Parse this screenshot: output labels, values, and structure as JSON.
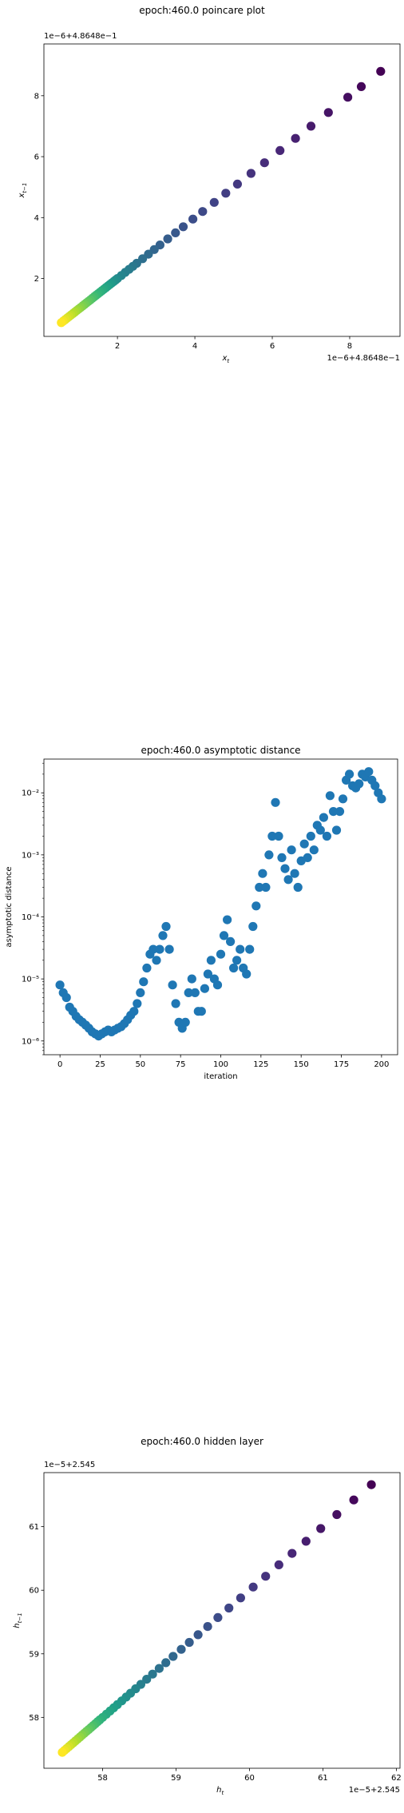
{
  "chart_data": [
    {
      "type": "scatter",
      "title": "epoch:460.0 poincare plot",
      "xlabel": "x_t",
      "ylabel": "x_{t-1}",
      "x_offset_text": "1e−6+4.8648e−1",
      "y_offset_text": "1e−6+4.8648e−1",
      "x_ticks": [
        "2",
        "4",
        "6",
        "8"
      ],
      "y_ticks": [
        "2",
        "4",
        "6",
        "8"
      ],
      "xlim": [
        0.1,
        9.3
      ],
      "ylim": [
        0.1,
        9.7
      ],
      "colormap": "viridis (dark purple = early, yellow = late)",
      "points_x": [
        0.55,
        0.6,
        0.65,
        0.7,
        0.75,
        0.8,
        0.85,
        0.9,
        0.95,
        1.0,
        1.05,
        1.1,
        1.15,
        1.2,
        1.25,
        1.3,
        1.35,
        1.4,
        1.45,
        1.5,
        1.55,
        1.6,
        1.65,
        1.7,
        1.75,
        1.8,
        1.85,
        1.9,
        1.95,
        2.0,
        2.1,
        2.2,
        2.3,
        2.4,
        2.5,
        2.65,
        2.8,
        2.95,
        3.1,
        3.3,
        3.5,
        3.7,
        3.95,
        4.2,
        4.5,
        4.8,
        5.1,
        5.45,
        5.8,
        6.2,
        6.6,
        7.0,
        7.45,
        7.95,
        8.3,
        8.8
      ],
      "points_y": [
        0.55,
        0.6,
        0.65,
        0.7,
        0.75,
        0.8,
        0.85,
        0.9,
        0.95,
        1.0,
        1.05,
        1.1,
        1.15,
        1.2,
        1.25,
        1.3,
        1.35,
        1.4,
        1.45,
        1.5,
        1.55,
        1.6,
        1.65,
        1.7,
        1.75,
        1.8,
        1.85,
        1.9,
        1.95,
        2.0,
        2.1,
        2.2,
        2.3,
        2.4,
        2.5,
        2.65,
        2.8,
        2.95,
        3.1,
        3.3,
        3.5,
        3.7,
        3.95,
        4.2,
        4.5,
        4.8,
        5.1,
        5.45,
        5.8,
        6.2,
        6.6,
        7.0,
        7.45,
        7.95,
        8.3,
        8.8
      ]
    },
    {
      "type": "scatter",
      "title": "epoch:460.0 asymptotic distance",
      "xlabel": "iteration",
      "ylabel": "asymptotic distance",
      "y_scale": "log",
      "x_ticks": [
        0,
        25,
        50,
        75,
        100,
        125,
        150,
        175,
        200
      ],
      "y_ticks": [
        "10⁻⁶",
        "10⁻⁵",
        "10⁻⁴",
        "10⁻³",
        "10⁻²"
      ],
      "xlim": [
        -10,
        210
      ],
      "ylim": [
        6e-07,
        0.035
      ],
      "color": "#1f77b4",
      "points_x": [
        0,
        2,
        4,
        6,
        8,
        10,
        12,
        14,
        16,
        18,
        20,
        22,
        24,
        26,
        28,
        30,
        32,
        34,
        36,
        38,
        40,
        42,
        44,
        46,
        48,
        50,
        52,
        54,
        56,
        58,
        60,
        62,
        64,
        66,
        68,
        70,
        72,
        74,
        76,
        78,
        80,
        82,
        84,
        86,
        88,
        90,
        92,
        94,
        96,
        98,
        100,
        102,
        104,
        106,
        108,
        110,
        112,
        114,
        116,
        118,
        120,
        122,
        124,
        126,
        128,
        130,
        132,
        134,
        136,
        138,
        140,
        142,
        144,
        146,
        148,
        150,
        152,
        154,
        156,
        158,
        160,
        162,
        164,
        166,
        168,
        170,
        172,
        174,
        176,
        178,
        180,
        182,
        184,
        186,
        188,
        190,
        192,
        194,
        196,
        198,
        200
      ],
      "points_y": [
        8e-06,
        6e-06,
        5e-06,
        3.5e-06,
        3e-06,
        2.5e-06,
        2.2e-06,
        2e-06,
        1.8e-06,
        1.6e-06,
        1.4e-06,
        1.3e-06,
        1.2e-06,
        1.3e-06,
        1.4e-06,
        1.5e-06,
        1.4e-06,
        1.5e-06,
        1.6e-06,
        1.7e-06,
        1.9e-06,
        2.2e-06,
        2.6e-06,
        3e-06,
        4e-06,
        6e-06,
        9e-06,
        1.5e-05,
        2.5e-05,
        3e-05,
        2e-05,
        3e-05,
        5e-05,
        7e-05,
        3e-05,
        8e-06,
        4e-06,
        2e-06,
        1.6e-06,
        2e-06,
        6e-06,
        1e-05,
        6e-06,
        3e-06,
        3e-06,
        7e-06,
        1.2e-05,
        2e-05,
        1e-05,
        8e-06,
        2.5e-05,
        5e-05,
        9e-05,
        4e-05,
        1.5e-05,
        2e-05,
        3e-05,
        1.5e-05,
        1.2e-05,
        3e-05,
        7e-05,
        0.00015,
        0.0003,
        0.0005,
        0.0003,
        0.001,
        0.002,
        0.007,
        0.002,
        0.0009,
        0.0006,
        0.0004,
        0.0012,
        0.0005,
        0.0003,
        0.0008,
        0.0015,
        0.0009,
        0.002,
        0.0012,
        0.003,
        0.0025,
        0.004,
        0.002,
        0.009,
        0.005,
        0.0025,
        0.005,
        0.008,
        0.016,
        0.02,
        0.013,
        0.012,
        0.014,
        0.02,
        0.018,
        0.022,
        0.016,
        0.013,
        0.01,
        0.008
      ]
    },
    {
      "type": "scatter",
      "title": "epoch:460.0 hidden layer",
      "xlabel": "h_t",
      "ylabel": "h_{t-1}",
      "x_offset_text": "1e−5+2.545",
      "y_offset_text": "1e−5+2.545",
      "x_ticks": [
        "58",
        "59",
        "60",
        "61",
        "62"
      ],
      "y_ticks": [
        "58",
        "59",
        "60",
        "61"
      ],
      "xlim": [
        57.2,
        62.05
      ],
      "ylim": [
        57.2,
        61.85
      ],
      "colormap": "viridis (dark purple = early, yellow = late)",
      "points_x": [
        57.45,
        57.48,
        57.51,
        57.54,
        57.57,
        57.6,
        57.63,
        57.66,
        57.69,
        57.72,
        57.75,
        57.78,
        57.81,
        57.84,
        57.87,
        57.9,
        57.93,
        57.96,
        58.0,
        58.05,
        58.1,
        58.15,
        58.2,
        58.26,
        58.32,
        58.38,
        58.45,
        58.52,
        58.6,
        58.68,
        58.77,
        58.86,
        58.96,
        59.07,
        59.18,
        59.3,
        59.43,
        59.57,
        59.72,
        59.88,
        60.05,
        60.22,
        60.4,
        60.58,
        60.77,
        60.97,
        61.19,
        61.42,
        61.66
      ],
      "points_y": [
        57.45,
        57.48,
        57.51,
        57.54,
        57.57,
        57.6,
        57.63,
        57.66,
        57.69,
        57.72,
        57.75,
        57.78,
        57.81,
        57.84,
        57.87,
        57.9,
        57.93,
        57.96,
        58.0,
        58.05,
        58.1,
        58.15,
        58.2,
        58.26,
        58.32,
        58.38,
        58.45,
        58.52,
        58.6,
        58.68,
        58.77,
        58.86,
        58.96,
        59.07,
        59.18,
        59.3,
        59.43,
        59.57,
        59.72,
        59.88,
        60.05,
        60.22,
        60.4,
        60.58,
        60.77,
        60.97,
        61.19,
        61.42,
        61.66
      ]
    }
  ]
}
